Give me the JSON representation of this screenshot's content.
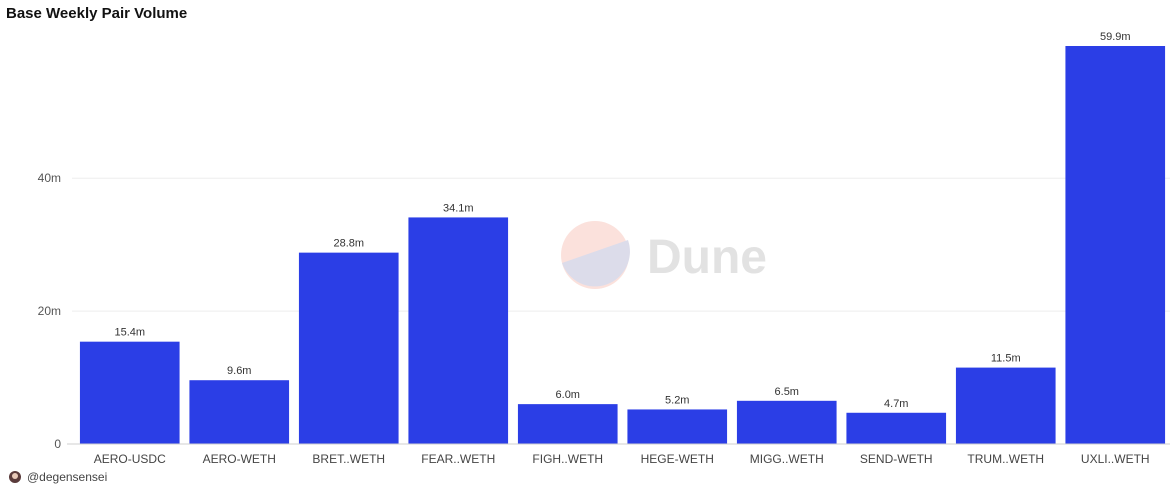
{
  "chart_data": {
    "type": "bar",
    "title": "Base Weekly Pair Volume",
    "categories": [
      "AERO-USDC",
      "AERO-WETH",
      "BRET..WETH",
      "FEAR..WETH",
      "FIGH..WETH",
      "HEGE-WETH",
      "MIGG..WETH",
      "SEND-WETH",
      "TRUM..WETH",
      "UXLI..WETH"
    ],
    "values": [
      15.4,
      9.6,
      28.8,
      34.1,
      6.0,
      5.2,
      6.5,
      4.7,
      11.5,
      59.9
    ],
    "data_labels": [
      "15.4m",
      "9.6m",
      "28.8m",
      "34.1m",
      "6.0m",
      "5.2m",
      "6.5m",
      "4.7m",
      "11.5m",
      "59.9m"
    ],
    "yticks": [
      0,
      20,
      40
    ],
    "ytick_labels": [
      "0",
      "20m",
      "40m"
    ],
    "ylim": [
      0,
      59.9
    ],
    "xlabel": "",
    "ylabel": "",
    "grid": true,
    "bar_color": "#2b3ee6"
  },
  "watermark": {
    "text": "Dune"
  },
  "footer": {
    "author": "@degensensei"
  }
}
